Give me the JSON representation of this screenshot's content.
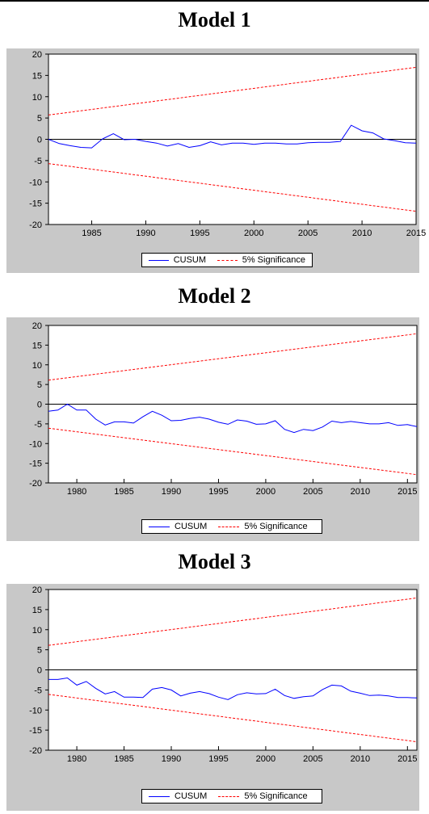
{
  "colors": {
    "cusum": "#0000ff",
    "bounds": "#ff0000",
    "zero": "#000000",
    "panel_bg": "#c8c8c8",
    "plot_bg": "#ffffff"
  },
  "legend": {
    "cusum_label": "CUSUM",
    "bounds_label": "5% Significance"
  },
  "chart_data": [
    {
      "type": "line",
      "title": "Model 1",
      "xlim": [
        1981,
        2015
      ],
      "ylim": [
        -20,
        20
      ],
      "xticks": [
        1985,
        1990,
        1995,
        2000,
        2005,
        2010,
        2015
      ],
      "yticks": [
        20,
        15,
        10,
        5,
        0,
        -5,
        -10,
        -15,
        -20
      ],
      "x": [
        1981,
        1982,
        1983,
        1984,
        1985,
        1986,
        1987,
        1988,
        1989,
        1990,
        1991,
        1992,
        1993,
        1994,
        1995,
        1996,
        1997,
        1998,
        1999,
        2000,
        2001,
        2002,
        2003,
        2004,
        2005,
        2006,
        2007,
        2008,
        2009,
        2010,
        2011,
        2012,
        2013,
        2014,
        2015
      ],
      "series": [
        {
          "name": "CUSUM",
          "values": [
            0,
            -1.0,
            -1.5,
            -1.9,
            -2.0,
            0.1,
            1.3,
            -0.1,
            0,
            -0.5,
            -0.9,
            -1.6,
            -1.0,
            -1.9,
            -1.5,
            -0.6,
            -1.3,
            -0.9,
            -0.9,
            -1.2,
            -0.9,
            -0.9,
            -1.1,
            -1.1,
            -0.8,
            -0.7,
            -0.7,
            -0.5,
            3.3,
            2.0,
            1.5,
            0.1,
            -0.3,
            -0.8,
            -0.9
          ]
        },
        {
          "name": "5% Significance",
          "values_start": [
            5.7,
            -5.7
          ],
          "values_end": [
            16.9,
            -16.9
          ]
        }
      ]
    },
    {
      "type": "line",
      "title": "Model 2",
      "xlim": [
        1977,
        2016
      ],
      "ylim": [
        -20,
        20
      ],
      "xticks": [
        1980,
        1985,
        1990,
        1995,
        2000,
        2005,
        2010,
        2015
      ],
      "yticks": [
        20,
        15,
        10,
        5,
        0,
        -5,
        -10,
        -15,
        -20
      ],
      "x": [
        1977,
        1978,
        1979,
        1980,
        1981,
        1982,
        1983,
        1984,
        1985,
        1986,
        1987,
        1988,
        1989,
        1990,
        1991,
        1992,
        1993,
        1994,
        1995,
        1996,
        1997,
        1998,
        1999,
        2000,
        2001,
        2002,
        2003,
        2004,
        2005,
        2006,
        2007,
        2008,
        2009,
        2010,
        2011,
        2012,
        2013,
        2014,
        2015,
        2016
      ],
      "series": [
        {
          "name": "CUSUM",
          "values": [
            -1.8,
            -1.5,
            0.0,
            -1.5,
            -1.5,
            -3.8,
            -5.3,
            -4.5,
            -4.5,
            -4.8,
            -3.2,
            -1.8,
            -2.8,
            -4.2,
            -4.1,
            -3.6,
            -3.3,
            -3.8,
            -4.6,
            -5.1,
            -4.0,
            -4.3,
            -5.1,
            -5.0,
            -4.2,
            -6.4,
            -7.2,
            -6.4,
            -6.7,
            -5.8,
            -4.3,
            -4.7,
            -4.4,
            -4.7,
            -5.0,
            -5.0,
            -4.7,
            -5.4,
            -5.2,
            -5.7
          ]
        },
        {
          "name": "5% Significance",
          "values_start": [
            6.1,
            -6.1
          ],
          "values_end": [
            17.9,
            -17.9
          ]
        }
      ]
    },
    {
      "type": "line",
      "title": "Model 3",
      "xlim": [
        1977,
        2016
      ],
      "ylim": [
        -20,
        20
      ],
      "xticks": [
        1980,
        1985,
        1990,
        1995,
        2000,
        2005,
        2010,
        2015
      ],
      "yticks": [
        20,
        15,
        10,
        5,
        0,
        -5,
        -10,
        -15,
        -20
      ],
      "x": [
        1977,
        1978,
        1979,
        1980,
        1981,
        1982,
        1983,
        1984,
        1985,
        1986,
        1987,
        1988,
        1989,
        1990,
        1991,
        1992,
        1993,
        1994,
        1995,
        1996,
        1997,
        1998,
        1999,
        2000,
        2001,
        2002,
        2003,
        2004,
        2005,
        2006,
        2007,
        2008,
        2009,
        2010,
        2011,
        2012,
        2013,
        2014,
        2015,
        2016
      ],
      "series": [
        {
          "name": "CUSUM",
          "values": [
            -2.4,
            -2.4,
            -2.0,
            -3.8,
            -2.9,
            -4.6,
            -6.0,
            -5.4,
            -6.8,
            -6.8,
            -6.9,
            -4.8,
            -4.4,
            -5.0,
            -6.5,
            -5.8,
            -5.4,
            -5.9,
            -6.8,
            -7.4,
            -6.2,
            -5.7,
            -6.0,
            -5.9,
            -4.8,
            -6.4,
            -7.1,
            -6.7,
            -6.5,
            -4.9,
            -3.8,
            -4.0,
            -5.3,
            -5.8,
            -6.4,
            -6.3,
            -6.5,
            -6.9,
            -6.9,
            -7.0
          ]
        },
        {
          "name": "5% Significance",
          "values_start": [
            6.1,
            -6.1
          ],
          "values_end": [
            17.9,
            -17.9
          ]
        }
      ]
    }
  ]
}
